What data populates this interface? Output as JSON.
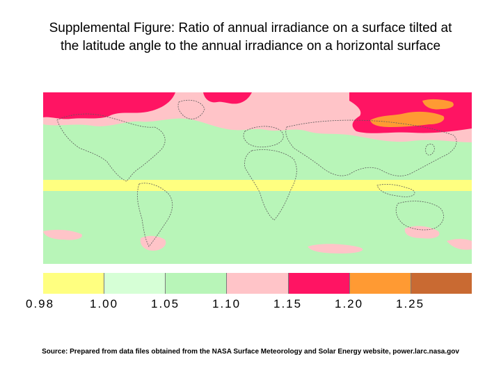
{
  "title": {
    "line1": "Supplemental Figure: Ratio of annual irradiance on a surface tilted at",
    "line2": "the latitude angle to the annual irradiance on a horizontal surface"
  },
  "map": {
    "description_colors": {
      "background": "#b8f5b8",
      "equatorial_band": "#ffff80",
      "pink_zone": "#ffc4c8",
      "magenta_zone": "#ff1463",
      "orange_zone": "#ff9a33",
      "brown_zone": "#c96a32"
    }
  },
  "legend": {
    "colors": [
      "#ffff80",
      "#d6ffd6",
      "#b8f5b8",
      "#ffc4c8",
      "#ff1463",
      "#ff9a33",
      "#c96a32"
    ],
    "labels": [
      "0.98",
      "1.00",
      "1.05",
      "1.10",
      "1.15",
      "1.20",
      "1.25"
    ]
  },
  "source": "Source: Prepared from data files obtained from the NASA Surface Meteorology and Solar Energy website, power.larc.nasa.gov"
}
